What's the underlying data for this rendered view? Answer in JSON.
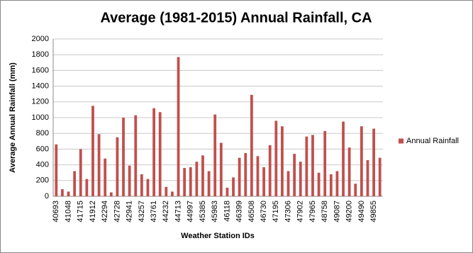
{
  "chart_data": {
    "type": "bar",
    "title": "Average (1981-2015)  Annual Rainfall, CA",
    "x_label": "Weather Station IDs",
    "y_label": "Average Annual Rainfall  (mm)",
    "categories": [
      "40693",
      null,
      "41048",
      null,
      "41715",
      null,
      "41912",
      null,
      "42294",
      null,
      "42728",
      null,
      "42941",
      null,
      "43257",
      null,
      "43761",
      null,
      "44232",
      null,
      "44713",
      null,
      "44997",
      null,
      "45385",
      null,
      "45983",
      null,
      "46118",
      null,
      "46399",
      null,
      "46508",
      null,
      "46730",
      null,
      "47195",
      null,
      "47306",
      null,
      "47902",
      null,
      "47965",
      null,
      "48758",
      null,
      "49087",
      null,
      "49200",
      null,
      "49490",
      null,
      "49855",
      null
    ],
    "series": [
      {
        "name": "Annual Rainfall",
        "color": "#c0504d",
        "values": [
          660,
          90,
          60,
          320,
          600,
          220,
          1150,
          790,
          480,
          50,
          750,
          1000,
          390,
          1030,
          280,
          220,
          1120,
          1070,
          120,
          60,
          1770,
          360,
          370,
          440,
          520,
          320,
          1040,
          680,
          110,
          240,
          490,
          550,
          1290,
          510,
          370,
          650,
          960,
          890,
          320,
          540,
          440,
          760,
          780,
          300,
          830,
          280,
          320,
          950,
          620,
          160,
          890,
          460,
          860,
          490
        ]
      }
    ],
    "ylim": [
      0,
      2000
    ],
    "yticks": [
      0,
      200,
      400,
      600,
      800,
      1000,
      1200,
      1400,
      1600,
      1800,
      2000
    ],
    "grid": true,
    "legend": "right"
  }
}
